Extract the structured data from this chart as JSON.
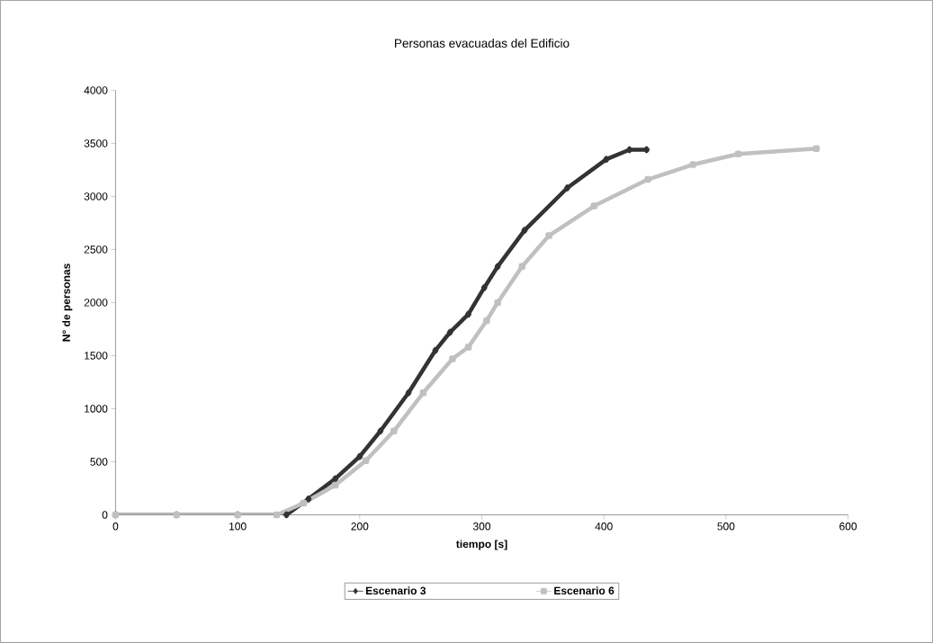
{
  "chart_data": {
    "type": "line",
    "title": "Personas evacuadas del Edificio",
    "xlabel": "tiempo [s]",
    "ylabel": "N° de personas",
    "xlim": [
      0,
      600
    ],
    "xticks": [
      0,
      100,
      200,
      300,
      400,
      500,
      600
    ],
    "ylim": [
      0,
      4000
    ],
    "yticks": [
      0,
      500,
      1000,
      1500,
      2000,
      2500,
      3000,
      3500,
      4000
    ],
    "grid": false,
    "legend": "bottom",
    "line_style": "solid",
    "series": [
      {
        "name": "Escenario 3",
        "color": "#333333",
        "marker": "diamond",
        "x": [
          0,
          50,
          100,
          140,
          158,
          180,
          200,
          217,
          240,
          262,
          274,
          289,
          302,
          313,
          335,
          370,
          402,
          421,
          435
        ],
        "values": [
          0,
          0,
          0,
          0,
          150,
          340,
          550,
          790,
          1150,
          1550,
          1720,
          1890,
          2140,
          2340,
          2680,
          3080,
          3350,
          3440,
          3440
        ]
      },
      {
        "name": "Escenario 6",
        "color": "#c0c0c0",
        "marker": "square",
        "x": [
          0,
          50,
          100,
          132,
          154,
          180,
          205,
          228,
          252,
          276,
          289,
          304,
          313,
          333,
          355,
          392,
          436,
          473,
          510,
          574
        ],
        "values": [
          0,
          0,
          0,
          0,
          110,
          280,
          510,
          790,
          1150,
          1470,
          1580,
          1830,
          2000,
          2340,
          2630,
          2910,
          3160,
          3300,
          3400,
          3450
        ]
      }
    ]
  }
}
